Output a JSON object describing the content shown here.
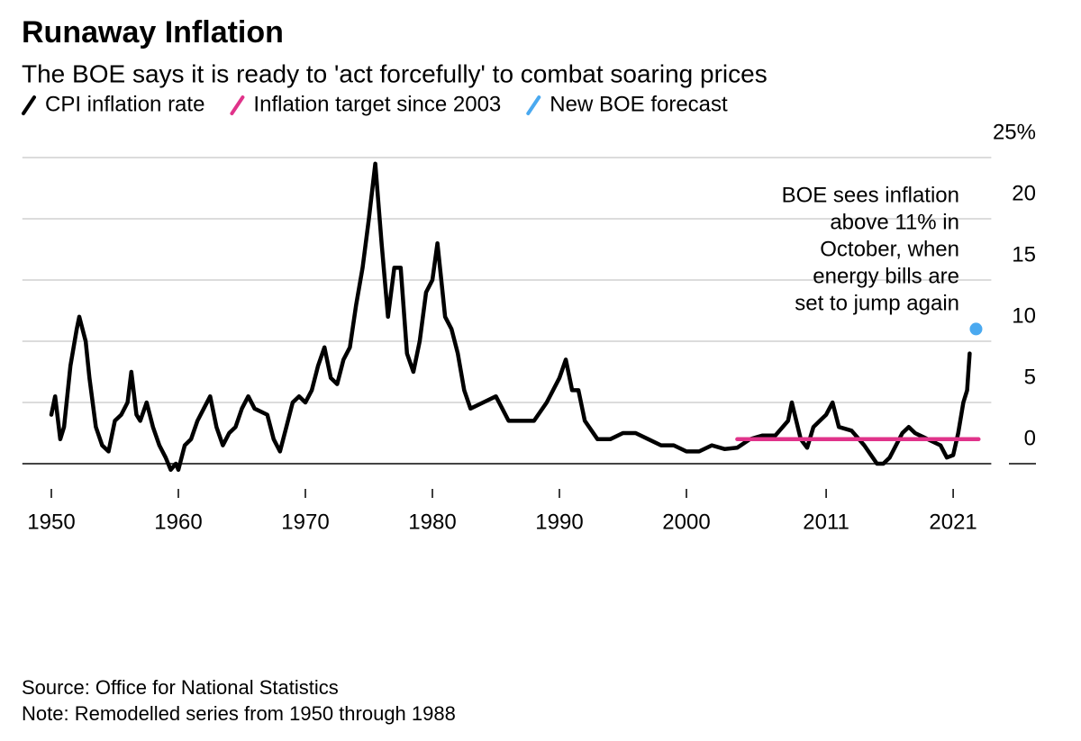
{
  "chart_data": {
    "type": "line",
    "title": "Runaway Inflation",
    "subtitle": "The BOE says it is ready to 'act forcefully' to combat soaring prices",
    "annotation": [
      "BOE sees inflation",
      "above 11% in",
      "October, when",
      "energy bills are",
      "set to jump again"
    ],
    "source": "Source: Office for National Statistics",
    "note": "Note: Remodelled series from 1950 through 1988",
    "xlim": [
      1948,
      2024
    ],
    "xticks": [
      1950,
      1960,
      1970,
      1980,
      1990,
      2000,
      2011,
      2021
    ],
    "ylim": [
      -2,
      25
    ],
    "yticks": [
      0,
      5,
      10,
      15,
      20,
      {
        "value": 25,
        "label": "25%"
      }
    ],
    "grid": true,
    "series": [
      {
        "name": "CPI inflation rate",
        "color": "#000000",
        "type": "line",
        "x": [
          1950,
          1950.3,
          1950.7,
          1951,
          1951.5,
          1952,
          1952.2,
          1952.7,
          1953,
          1953.5,
          1954,
          1954.5,
          1955,
          1955.5,
          1956,
          1956.3,
          1956.7,
          1957,
          1957.5,
          1958,
          1958.5,
          1959,
          1959.4,
          1959.8,
          1960,
          1960.5,
          1961,
          1961.5,
          1962,
          1962.5,
          1963,
          1963.5,
          1964,
          1964.5,
          1965,
          1965.5,
          1966,
          1967,
          1967.5,
          1968,
          1968.5,
          1969,
          1969.5,
          1970,
          1970.5,
          1971,
          1971.5,
          1972,
          1972.5,
          1973,
          1973.5,
          1974,
          1974.5,
          1975,
          1975.5,
          1976,
          1976.5,
          1977,
          1977.5,
          1978,
          1978.5,
          1979,
          1979.5,
          1980,
          1980.4,
          1980.8,
          1981,
          1981.5,
          1982,
          1982.5,
          1983,
          1984,
          1985,
          1986,
          1987,
          1988,
          1989,
          1990,
          1990.5,
          1991,
          1991.5,
          1992,
          1993,
          1994,
          1995,
          1996,
          1997,
          1998,
          1999,
          2000,
          2001,
          2002,
          2003,
          2004,
          2005,
          2006,
          2007,
          2008,
          2008.3,
          2009,
          2009.5,
          2010,
          2010.5,
          2011,
          2011.5,
          2012,
          2013,
          2014,
          2015,
          2015.5,
          2016,
          2017,
          2017.5,
          2018,
          2019,
          2020,
          2020.5,
          2021,
          2021.4,
          2021.8,
          2022.1,
          2022.3
        ],
        "values": [
          4,
          5.5,
          2,
          3,
          8,
          11,
          12,
          10,
          7,
          3,
          1.5,
          1,
          3.5,
          4,
          5,
          7.5,
          4,
          3.5,
          5,
          3,
          1.5,
          0.5,
          -0.5,
          0,
          -0.5,
          1.5,
          2,
          3.5,
          4.5,
          5.5,
          3,
          1.5,
          2.5,
          3,
          4.5,
          5.5,
          4.5,
          4,
          2,
          1,
          3,
          5,
          5.5,
          5,
          6,
          8,
          9.5,
          7,
          6.5,
          8.5,
          9.5,
          13,
          16,
          20,
          24.5,
          18,
          12,
          16,
          16,
          9,
          7.5,
          10,
          14,
          15,
          18,
          14,
          12,
          11,
          9,
          6,
          4.5,
          5,
          5.5,
          3.5,
          3.5,
          3.5,
          5,
          7,
          8.5,
          6,
          6,
          3.5,
          2,
          2,
          2.5,
          2.5,
          2,
          1.5,
          1.5,
          1,
          1,
          1.5,
          1.2,
          1.3,
          2,
          2.3,
          2.3,
          3.5,
          5,
          2,
          1.3,
          3,
          3.5,
          4,
          5,
          3,
          2.7,
          1.5,
          0,
          0,
          0.5,
          2.5,
          3,
          2.5,
          2,
          1.5,
          0.5,
          0.7,
          2.5,
          5,
          6,
          9
        ]
      },
      {
        "name": "Inflation target since 2003",
        "color": "#e0338a",
        "type": "line",
        "x": [
          2004,
          2023
        ],
        "values": [
          2,
          2
        ]
      },
      {
        "name": "New BOE forecast",
        "color": "#4aa9f0",
        "type": "scatter",
        "x": [
          2022.8
        ],
        "values": [
          11
        ]
      }
    ]
  }
}
